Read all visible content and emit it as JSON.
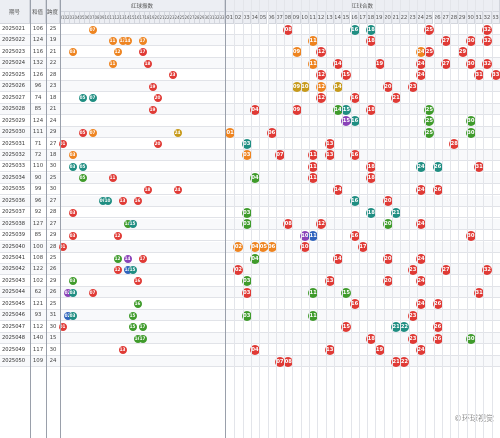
{
  "headers": {
    "period": "期号",
    "sum": "和值",
    "span": "跨度",
    "red_distribution": "红球振数",
    "red_aggregate": "红球合数"
  },
  "cols": [
    "01",
    "02",
    "03",
    "04",
    "05",
    "06",
    "07",
    "08",
    "09",
    "10",
    "11",
    "12",
    "13",
    "14",
    "15",
    "16",
    "17",
    "18",
    "19",
    "20",
    "21",
    "22",
    "23",
    "24",
    "25",
    "26",
    "27",
    "28",
    "29",
    "30",
    "31",
    "32",
    "33"
  ],
  "cols2": [
    "01",
    "02",
    "03",
    "04",
    "05",
    "06",
    "07",
    "08",
    "09",
    "10",
    "11",
    "12",
    "13",
    "14",
    "15",
    "16",
    "17",
    "18",
    "19",
    "20",
    "21",
    "22",
    "23",
    "24",
    "25",
    "26",
    "27",
    "28",
    "29",
    "30",
    "31",
    "32",
    "33"
  ],
  "colors": {
    "red": "#e03a35",
    "orange": "#ee8420",
    "green": "#3f9b2b",
    "teal": "#1f8e82",
    "blue": "#2f63bd",
    "purple": "#8a42b8",
    "gold": "#c79a1a"
  },
  "rows": [
    {
      "p": "2025021",
      "s": "106",
      "k": "25",
      "a": [
        [
          7,
          "orange"
        ]
      ],
      "b": [
        [
          8,
          "red"
        ],
        [
          16,
          "teal"
        ],
        [
          18,
          "teal"
        ],
        [
          25,
          "red"
        ],
        [
          32,
          "red"
        ]
      ]
    },
    {
      "p": "2025022",
      "s": "124",
      "k": "19",
      "a": [
        [
          11,
          "orange"
        ],
        [
          13,
          "orange"
        ],
        [
          14,
          "orange"
        ],
        [
          17,
          "orange"
        ]
      ],
      "b": [
        [
          11,
          "orange"
        ],
        [
          18,
          "red"
        ],
        [
          27,
          "red"
        ],
        [
          30,
          "red"
        ],
        [
          32,
          "red"
        ]
      ]
    },
    {
      "p": "2025023",
      "s": "116",
      "k": "21",
      "a": [
        [
          3,
          "orange"
        ],
        [
          12,
          "orange"
        ],
        [
          17,
          "red"
        ]
      ],
      "b": [
        [
          9,
          "orange"
        ],
        [
          12,
          "red"
        ],
        [
          24,
          "orange"
        ],
        [
          25,
          "red"
        ],
        [
          29,
          "red"
        ]
      ]
    },
    {
      "p": "2025024",
      "s": "132",
      "k": "22",
      "a": [
        [
          11,
          "orange"
        ],
        [
          18,
          "red"
        ]
      ],
      "b": [
        [
          11,
          "orange"
        ],
        [
          14,
          "red"
        ],
        [
          19,
          "red"
        ],
        [
          24,
          "red"
        ],
        [
          27,
          "red"
        ],
        [
          30,
          "red"
        ],
        [
          32,
          "red"
        ]
      ]
    },
    {
      "p": "2025025",
      "s": "126",
      "k": "28",
      "a": [
        [
          23,
          "red"
        ]
      ],
      "b": [
        [
          12,
          "red"
        ],
        [
          15,
          "red"
        ],
        [
          24,
          "red"
        ],
        [
          31,
          "red"
        ],
        [
          33,
          "red"
        ]
      ]
    },
    {
      "p": "2025026",
      "s": "96",
      "k": "23",
      "a": [
        [
          19,
          "red"
        ]
      ],
      "b": [
        [
          9,
          "gold"
        ],
        [
          10,
          "gold"
        ],
        [
          12,
          "orange"
        ],
        [
          14,
          "gold"
        ],
        [
          20,
          "red"
        ],
        [
          23,
          "red"
        ]
      ]
    },
    {
      "p": "2025027",
      "s": "74",
      "k": "18",
      "a": [
        [
          5,
          "teal"
        ],
        [
          7,
          "teal"
        ],
        [
          20,
          "red"
        ]
      ],
      "b": [
        [
          12,
          "red"
        ],
        [
          16,
          "red"
        ],
        [
          21,
          "red"
        ]
      ]
    },
    {
      "p": "2025028",
      "s": "85",
      "k": "21",
      "a": [
        [
          19,
          "red"
        ]
      ],
      "b": [
        [
          4,
          "red"
        ],
        [
          9,
          "red"
        ],
        [
          14,
          "green"
        ],
        [
          15,
          "teal"
        ],
        [
          18,
          "red"
        ],
        [
          25,
          "green"
        ]
      ]
    },
    {
      "p": "2025029",
      "s": "124",
      "k": "24",
      "a": [],
      "b": [
        [
          15,
          "purple"
        ],
        [
          16,
          "teal"
        ],
        [
          25,
          "green"
        ],
        [
          30,
          "green"
        ]
      ]
    },
    {
      "p": "2025030",
      "s": "111",
      "k": "29",
      "a": [
        [
          5,
          "red"
        ],
        [
          7,
          "orange"
        ],
        [
          24,
          "gold"
        ]
      ],
      "b": [
        [
          1,
          "orange"
        ],
        [
          6,
          "red"
        ],
        [
          25,
          "green"
        ],
        [
          30,
          "green"
        ]
      ]
    },
    {
      "p": "2025031",
      "s": "71",
      "k": "27",
      "a": [
        [
          1,
          "red"
        ],
        [
          20,
          "red"
        ]
      ],
      "b": [
        [
          3,
          "teal"
        ],
        [
          13,
          "red"
        ],
        [
          28,
          "red"
        ]
      ]
    },
    {
      "p": "2025032",
      "s": "72",
      "k": "18",
      "a": [
        [
          3,
          "orange"
        ]
      ],
      "b": [
        [
          3,
          "orange"
        ],
        [
          7,
          "red"
        ],
        [
          11,
          "red"
        ],
        [
          13,
          "red"
        ],
        [
          16,
          "red"
        ]
      ]
    },
    {
      "p": "2025033",
      "s": "110",
      "k": "30",
      "a": [
        [
          3,
          "teal"
        ],
        [
          5,
          "teal"
        ]
      ],
      "b": [
        [
          11,
          "red"
        ],
        [
          18,
          "red"
        ],
        [
          24,
          "teal"
        ],
        [
          26,
          "teal"
        ],
        [
          31,
          "red"
        ]
      ]
    },
    {
      "p": "2025034",
      "s": "90",
      "k": "25",
      "a": [
        [
          5,
          "green"
        ],
        [
          11,
          "red"
        ]
      ],
      "b": [
        [
          4,
          "green"
        ],
        [
          11,
          "red"
        ],
        [
          18,
          "red"
        ]
      ]
    },
    {
      "p": "2025035",
      "s": "99",
      "k": "30",
      "a": [
        [
          18,
          "red"
        ],
        [
          24,
          "red"
        ]
      ],
      "b": [
        [
          14,
          "red"
        ],
        [
          24,
          "red"
        ],
        [
          26,
          "red"
        ]
      ]
    },
    {
      "p": "2025036",
      "s": "96",
      "k": "27",
      "a": [
        [
          9,
          "teal"
        ],
        [
          10,
          "teal"
        ],
        [
          13,
          "red"
        ],
        [
          16,
          "red"
        ]
      ],
      "b": [
        [
          16,
          "teal"
        ],
        [
          20,
          "red"
        ]
      ]
    },
    {
      "p": "2025037",
      "s": "92",
      "k": "28",
      "a": [
        [
          3,
          "red"
        ]
      ],
      "b": [
        [
          3,
          "green"
        ],
        [
          18,
          "teal"
        ],
        [
          21,
          "teal"
        ]
      ]
    },
    {
      "p": "2025038",
      "s": "127",
      "k": "27",
      "a": [
        [
          14,
          "green"
        ],
        [
          15,
          "teal"
        ]
      ],
      "b": [
        [
          3,
          "green"
        ],
        [
          8,
          "red"
        ],
        [
          12,
          "red"
        ],
        [
          20,
          "green"
        ],
        [
          24,
          "red"
        ]
      ]
    },
    {
      "p": "2025039",
      "s": "85",
      "k": "29",
      "a": [
        [
          3,
          "red"
        ],
        [
          12,
          "red"
        ]
      ],
      "b": [
        [
          10,
          "purple"
        ],
        [
          11,
          "blue"
        ],
        [
          16,
          "red"
        ],
        [
          30,
          "red"
        ]
      ]
    },
    {
      "p": "2025040",
      "s": "100",
      "k": "28",
      "a": [
        [
          1,
          "red"
        ]
      ],
      "b": [
        [
          2,
          "orange"
        ],
        [
          4,
          "orange"
        ],
        [
          5,
          "orange"
        ],
        [
          6,
          "orange"
        ],
        [
          10,
          "red"
        ],
        [
          17,
          "red"
        ]
      ]
    },
    {
      "p": "2025041",
      "s": "108",
      "k": "25",
      "a": [
        [
          12,
          "green"
        ],
        [
          14,
          "purple"
        ],
        [
          17,
          "red"
        ]
      ],
      "b": [
        [
          4,
          "green"
        ],
        [
          14,
          "red"
        ],
        [
          20,
          "red"
        ],
        [
          24,
          "red"
        ]
      ]
    },
    {
      "p": "2025042",
      "s": "122",
      "k": "26",
      "a": [
        [
          12,
          "red"
        ],
        [
          14,
          "blue"
        ],
        [
          15,
          "teal"
        ]
      ],
      "b": [
        [
          2,
          "red"
        ],
        [
          23,
          "red"
        ],
        [
          27,
          "red"
        ],
        [
          32,
          "red"
        ]
      ]
    },
    {
      "p": "2025043",
      "s": "102",
      "k": "29",
      "a": [
        [
          3,
          "green"
        ],
        [
          16,
          "red"
        ]
      ],
      "b": [
        [
          3,
          "green"
        ],
        [
          13,
          "red"
        ],
        [
          20,
          "red"
        ],
        [
          24,
          "red"
        ]
      ]
    },
    {
      "p": "2025044",
      "s": "62",
      "k": "26",
      "a": [
        [
          2,
          "purple"
        ],
        [
          3,
          "teal"
        ],
        [
          7,
          "red"
        ]
      ],
      "b": [
        [
          3,
          "red"
        ],
        [
          11,
          "green"
        ],
        [
          15,
          "green"
        ],
        [
          31,
          "red"
        ]
      ]
    },
    {
      "p": "2025045",
      "s": "121",
      "k": "25",
      "a": [
        [
          16,
          "green"
        ]
      ],
      "b": [
        [
          16,
          "red"
        ],
        [
          24,
          "red"
        ],
        [
          26,
          "red"
        ]
      ]
    },
    {
      "p": "2025046",
      "s": "93",
      "k": "31",
      "a": [
        [
          2,
          "blue"
        ],
        [
          3,
          "teal"
        ],
        [
          15,
          "green"
        ]
      ],
      "b": [
        [
          3,
          "green"
        ],
        [
          11,
          "green"
        ],
        [
          23,
          "red"
        ]
      ]
    },
    {
      "p": "2025047",
      "s": "112",
      "k": "30",
      "a": [
        [
          1,
          "red"
        ],
        [
          15,
          "green"
        ],
        [
          17,
          "green"
        ]
      ],
      "b": [
        [
          15,
          "red"
        ],
        [
          21,
          "teal"
        ],
        [
          22,
          "teal"
        ],
        [
          26,
          "red"
        ]
      ]
    },
    {
      "p": "2025048",
      "s": "140",
      "k": "15",
      "a": [
        [
          16,
          "green"
        ],
        [
          17,
          "green"
        ]
      ],
      "b": [
        [
          18,
          "red"
        ],
        [
          23,
          "red"
        ],
        [
          26,
          "red"
        ],
        [
          30,
          "green"
        ]
      ]
    },
    {
      "p": "2025049",
      "s": "117",
      "k": "30",
      "a": [
        [
          13,
          "red"
        ]
      ],
      "b": [
        [
          4,
          "red"
        ],
        [
          13,
          "red"
        ],
        [
          19,
          "red"
        ],
        [
          24,
          "red"
        ]
      ]
    },
    {
      "p": "2025050",
      "s": "109",
      "k": "24",
      "a": [],
      "b": [
        [
          7,
          "red"
        ],
        [
          8,
          "red"
        ],
        [
          21,
          "red"
        ],
        [
          22,
          "red"
        ]
      ]
    }
  ],
  "watermark": "©环球视觉"
}
